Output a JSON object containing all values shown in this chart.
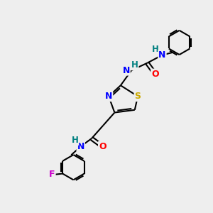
{
  "bg_color": "#eeeeee",
  "atom_colors": {
    "N": "#0000ff",
    "O": "#ff0000",
    "S": "#ccaa00",
    "F": "#cc00cc",
    "C": "#000000",
    "H_teal": "#008080"
  },
  "bond_color": "#000000",
  "lw": 1.5,
  "font_size": 8.5,
  "xlim": [
    0,
    10
  ],
  "ylim": [
    0,
    10
  ]
}
